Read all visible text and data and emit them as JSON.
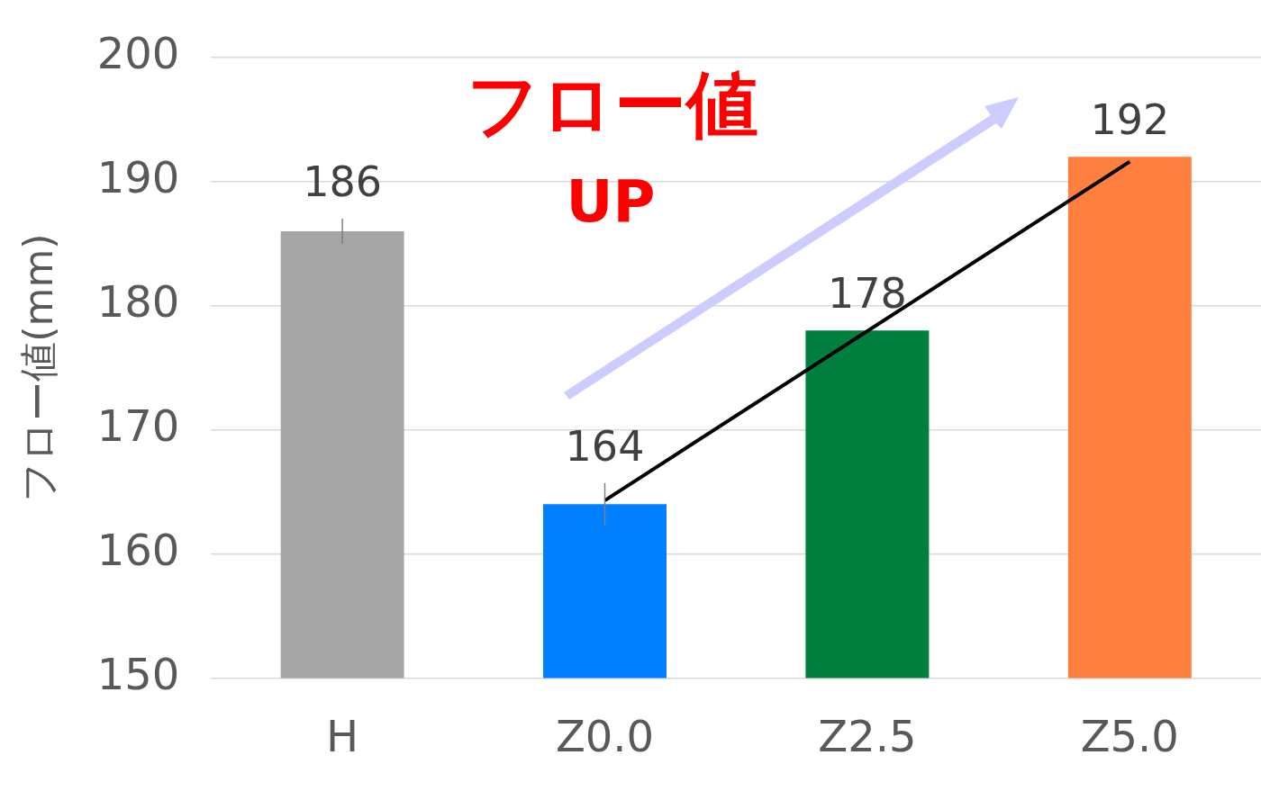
{
  "chart_data": {
    "type": "bar",
    "ylabel": "フロー値(mm)",
    "categories": [
      "H",
      "Z0.0",
      "Z2.5",
      "Z5.0"
    ],
    "series": [
      {
        "colors": [
          "#a5a5a5",
          "#0080ff",
          "#007f3f",
          "#ff7f3f"
        ],
        "values": [
          186,
          164,
          178,
          192
        ],
        "errors": [
          1,
          1.7,
          null,
          null
        ],
        "value_labels": [
          "186",
          "164",
          "178",
          "192"
        ]
      },
      {
        "type": "line",
        "color": "#000000",
        "marker": "none",
        "x": [
          "Z0.0",
          "Z5.0"
        ],
        "values": [
          164.3,
          191.6
        ]
      }
    ],
    "ylim": [
      150,
      200
    ],
    "yticks": [
      150,
      160,
      170,
      180,
      190,
      200
    ],
    "grid": "y",
    "legend": false,
    "annotations": [
      "フロー値",
      "UP"
    ]
  }
}
